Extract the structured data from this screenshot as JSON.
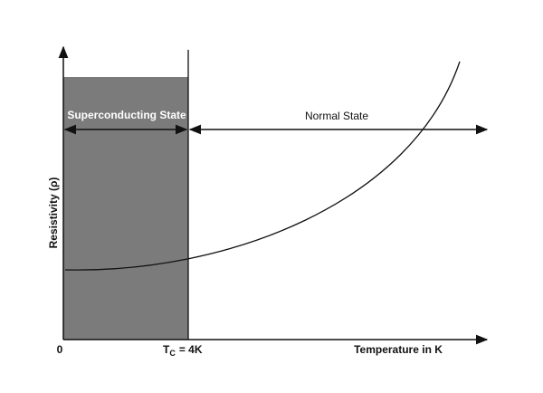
{
  "axes": {
    "y_label": "Resistivity (ρ)",
    "x_label": "Temperature in K",
    "origin": "0"
  },
  "critical_temperature": {
    "symbol": "T",
    "subscript": "C",
    "value": "= 4K"
  },
  "regions": {
    "superconducting": "Superconducting State",
    "normal": "Normal State"
  }
}
